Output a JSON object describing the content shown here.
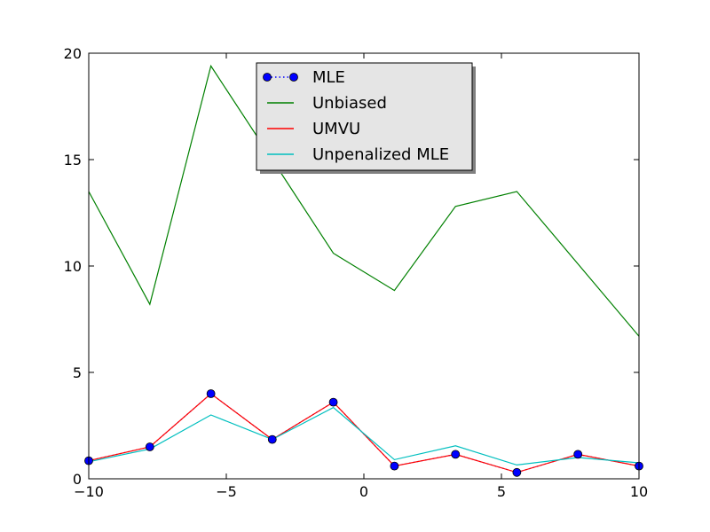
{
  "chart_data": {
    "type": "line",
    "title": "",
    "xlabel": "",
    "ylabel": "",
    "xlim": [
      -10,
      10
    ],
    "ylim": [
      0,
      20
    ],
    "grid": false,
    "legend_position": "upper-center",
    "x": [
      -10,
      -7.78,
      -5.56,
      -3.33,
      -1.11,
      1.11,
      3.33,
      5.56,
      7.78,
      10
    ],
    "x_ticks": [
      {
        "value": -10,
        "label": "−10"
      },
      {
        "value": -5,
        "label": "−5"
      },
      {
        "value": 0,
        "label": "0"
      },
      {
        "value": 5,
        "label": "5"
      },
      {
        "value": 10,
        "label": "10"
      }
    ],
    "y_ticks": [
      {
        "value": 0,
        "label": "0"
      },
      {
        "value": 5,
        "label": "5"
      },
      {
        "value": 10,
        "label": "10"
      },
      {
        "value": 15,
        "label": "15"
      },
      {
        "value": 20,
        "label": "20"
      }
    ],
    "series": [
      {
        "name": "MLE",
        "color": "#0000ff",
        "style": "dotted-with-circle-markers",
        "values": [
          0.85,
          1.5,
          4.0,
          1.85,
          3.6,
          0.6,
          1.15,
          0.3,
          1.15,
          0.6
        ]
      },
      {
        "name": "Unbiased",
        "color": "#008000",
        "style": "solid",
        "values": [
          13.5,
          8.2,
          19.4,
          15.0,
          10.6,
          8.85,
          12.8,
          13.5,
          10.1,
          6.7
        ]
      },
      {
        "name": "UMVU",
        "color": "#ff0000",
        "style": "solid",
        "values": [
          0.85,
          1.5,
          4.0,
          1.85,
          3.6,
          0.6,
          1.15,
          0.3,
          1.15,
          0.6
        ]
      },
      {
        "name": "Unpenalized MLE",
        "color": "#00bfbf",
        "style": "solid",
        "values": [
          0.8,
          1.4,
          3.0,
          1.85,
          3.35,
          0.9,
          1.55,
          0.65,
          1.0,
          0.75
        ]
      }
    ]
  }
}
